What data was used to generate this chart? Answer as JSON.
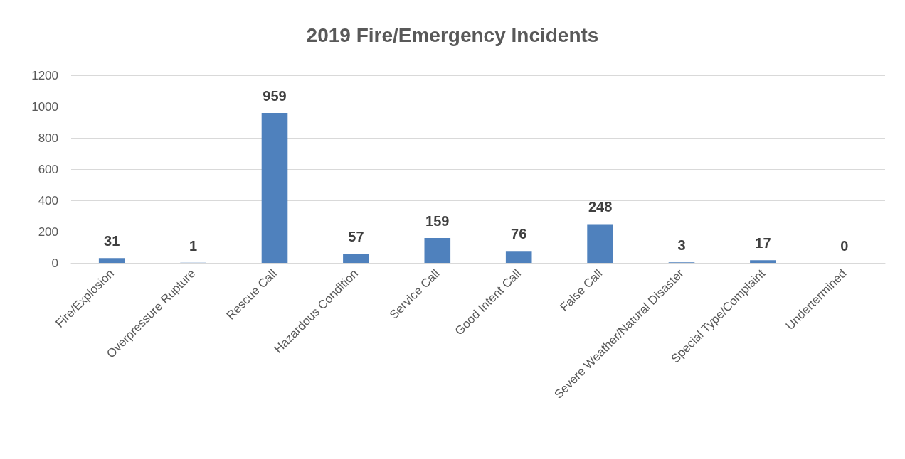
{
  "chart_data": {
    "type": "bar",
    "title": "2019 Fire/Emergency Incidents",
    "categories": [
      "Fire/Explosion",
      "Overpressure Rupture",
      "Rescue Call",
      "Hazardous Condition",
      "Service Call",
      "Good Intent Call",
      "False Call",
      "Severe Weather/Natural Disaster",
      "Special Type/Complaint",
      "Undertermined"
    ],
    "values": [
      31,
      1,
      959,
      57,
      159,
      76,
      248,
      3,
      17,
      0
    ],
    "color": "#4f81bd",
    "ylim": [
      0,
      1200
    ],
    "yticks": [
      0,
      200,
      400,
      600,
      800,
      1000,
      1200
    ],
    "grid": "y",
    "data_labels": true
  }
}
